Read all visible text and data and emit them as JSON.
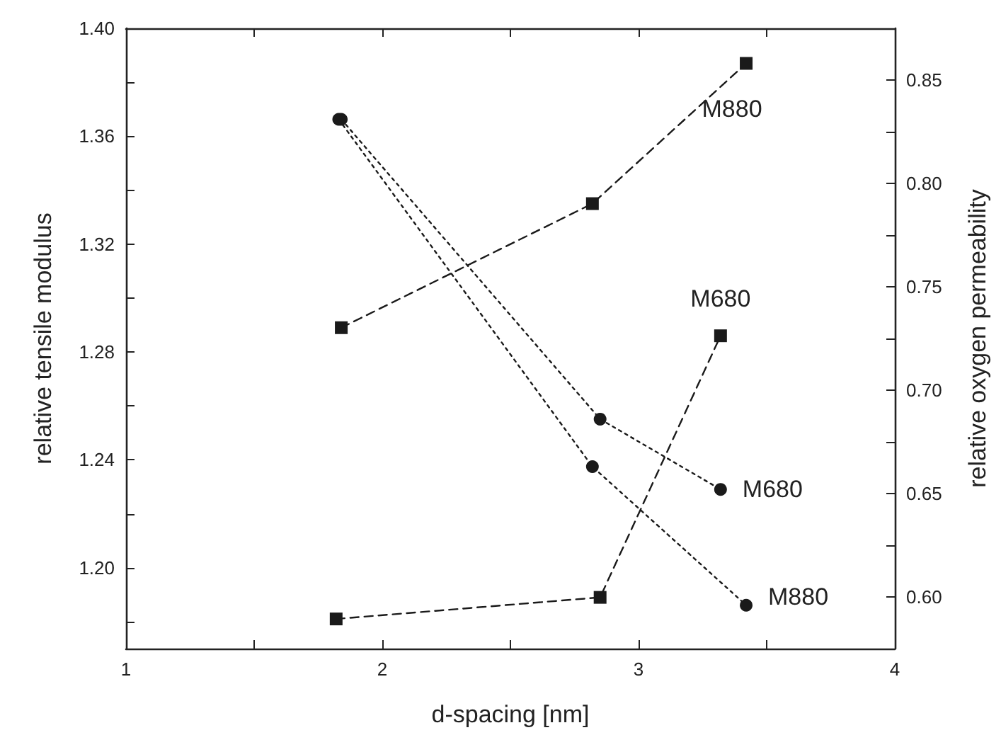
{
  "chart_data": {
    "type": "line",
    "xlabel": "d-spacing [nm]",
    "ylabel": "relative tensile modulus",
    "y2label": "relative oxygen permeability",
    "xlim": [
      1,
      4
    ],
    "xticks": [
      1,
      {
        "value": 1.5,
        "label": null
      },
      2,
      {
        "value": 2.5,
        "label": null
      },
      3,
      {
        "value": 3.5,
        "label": null
      },
      4
    ],
    "ylim": [
      1.17,
      1.4
    ],
    "yticks": [
      {
        "value": 1.18,
        "label": null
      },
      {
        "value": 1.2,
        "label": "1.20"
      },
      {
        "value": 1.22,
        "label": null
      },
      1.24,
      {
        "value": 1.26,
        "label": null
      },
      1.28,
      {
        "value": 1.3,
        "label": null
      },
      1.32,
      {
        "value": 1.34,
        "label": null
      },
      1.36,
      {
        "value": 1.38,
        "label": null
      },
      {
        "value": 1.4,
        "label": "1.40"
      }
    ],
    "y2lim": [
      0.575,
      0.875
    ],
    "y2ticks": [
      {
        "value": 0.6,
        "label": "0.60"
      },
      {
        "value": 0.625,
        "label": null
      },
      0.65,
      {
        "value": 0.675,
        "label": null
      },
      {
        "value": 0.7,
        "label": "0.70"
      },
      {
        "value": 0.725,
        "label": null
      },
      0.75,
      {
        "value": 0.775,
        "label": null
      },
      {
        "value": 0.8,
        "label": "0.80"
      },
      {
        "value": 0.825,
        "label": null
      },
      0.85
    ],
    "grid": false,
    "legend": false,
    "series": [
      {
        "name": "M880",
        "color": "#1a1a1a",
        "marker": "square",
        "line_style": "dashed",
        "x": [
          1.84,
          2.82,
          3.42
        ],
        "values": [
          1.289,
          1.335,
          1.387
        ]
      },
      {
        "name": "M680",
        "color": "#1a1a1a",
        "marker": "square",
        "line_style": "dashed",
        "x": [
          1.82,
          2.85,
          3.32
        ],
        "values": [
          1.181,
          1.189,
          1.286
        ]
      },
      {
        "name": "M680",
        "color": "#1a1a1a",
        "marker": "circle",
        "line_style": "dotted",
        "axis": "y2",
        "x": [
          1.84,
          2.85,
          3.32
        ],
        "values": [
          0.831,
          0.686,
          0.652
        ]
      },
      {
        "name": "M880",
        "color": "#1a1a1a",
        "marker": "circle",
        "line_style": "dotted",
        "axis": "y2",
        "x": [
          1.83,
          2.82,
          3.42
        ],
        "values": [
          0.831,
          0.663,
          0.596
        ]
      }
    ]
  }
}
